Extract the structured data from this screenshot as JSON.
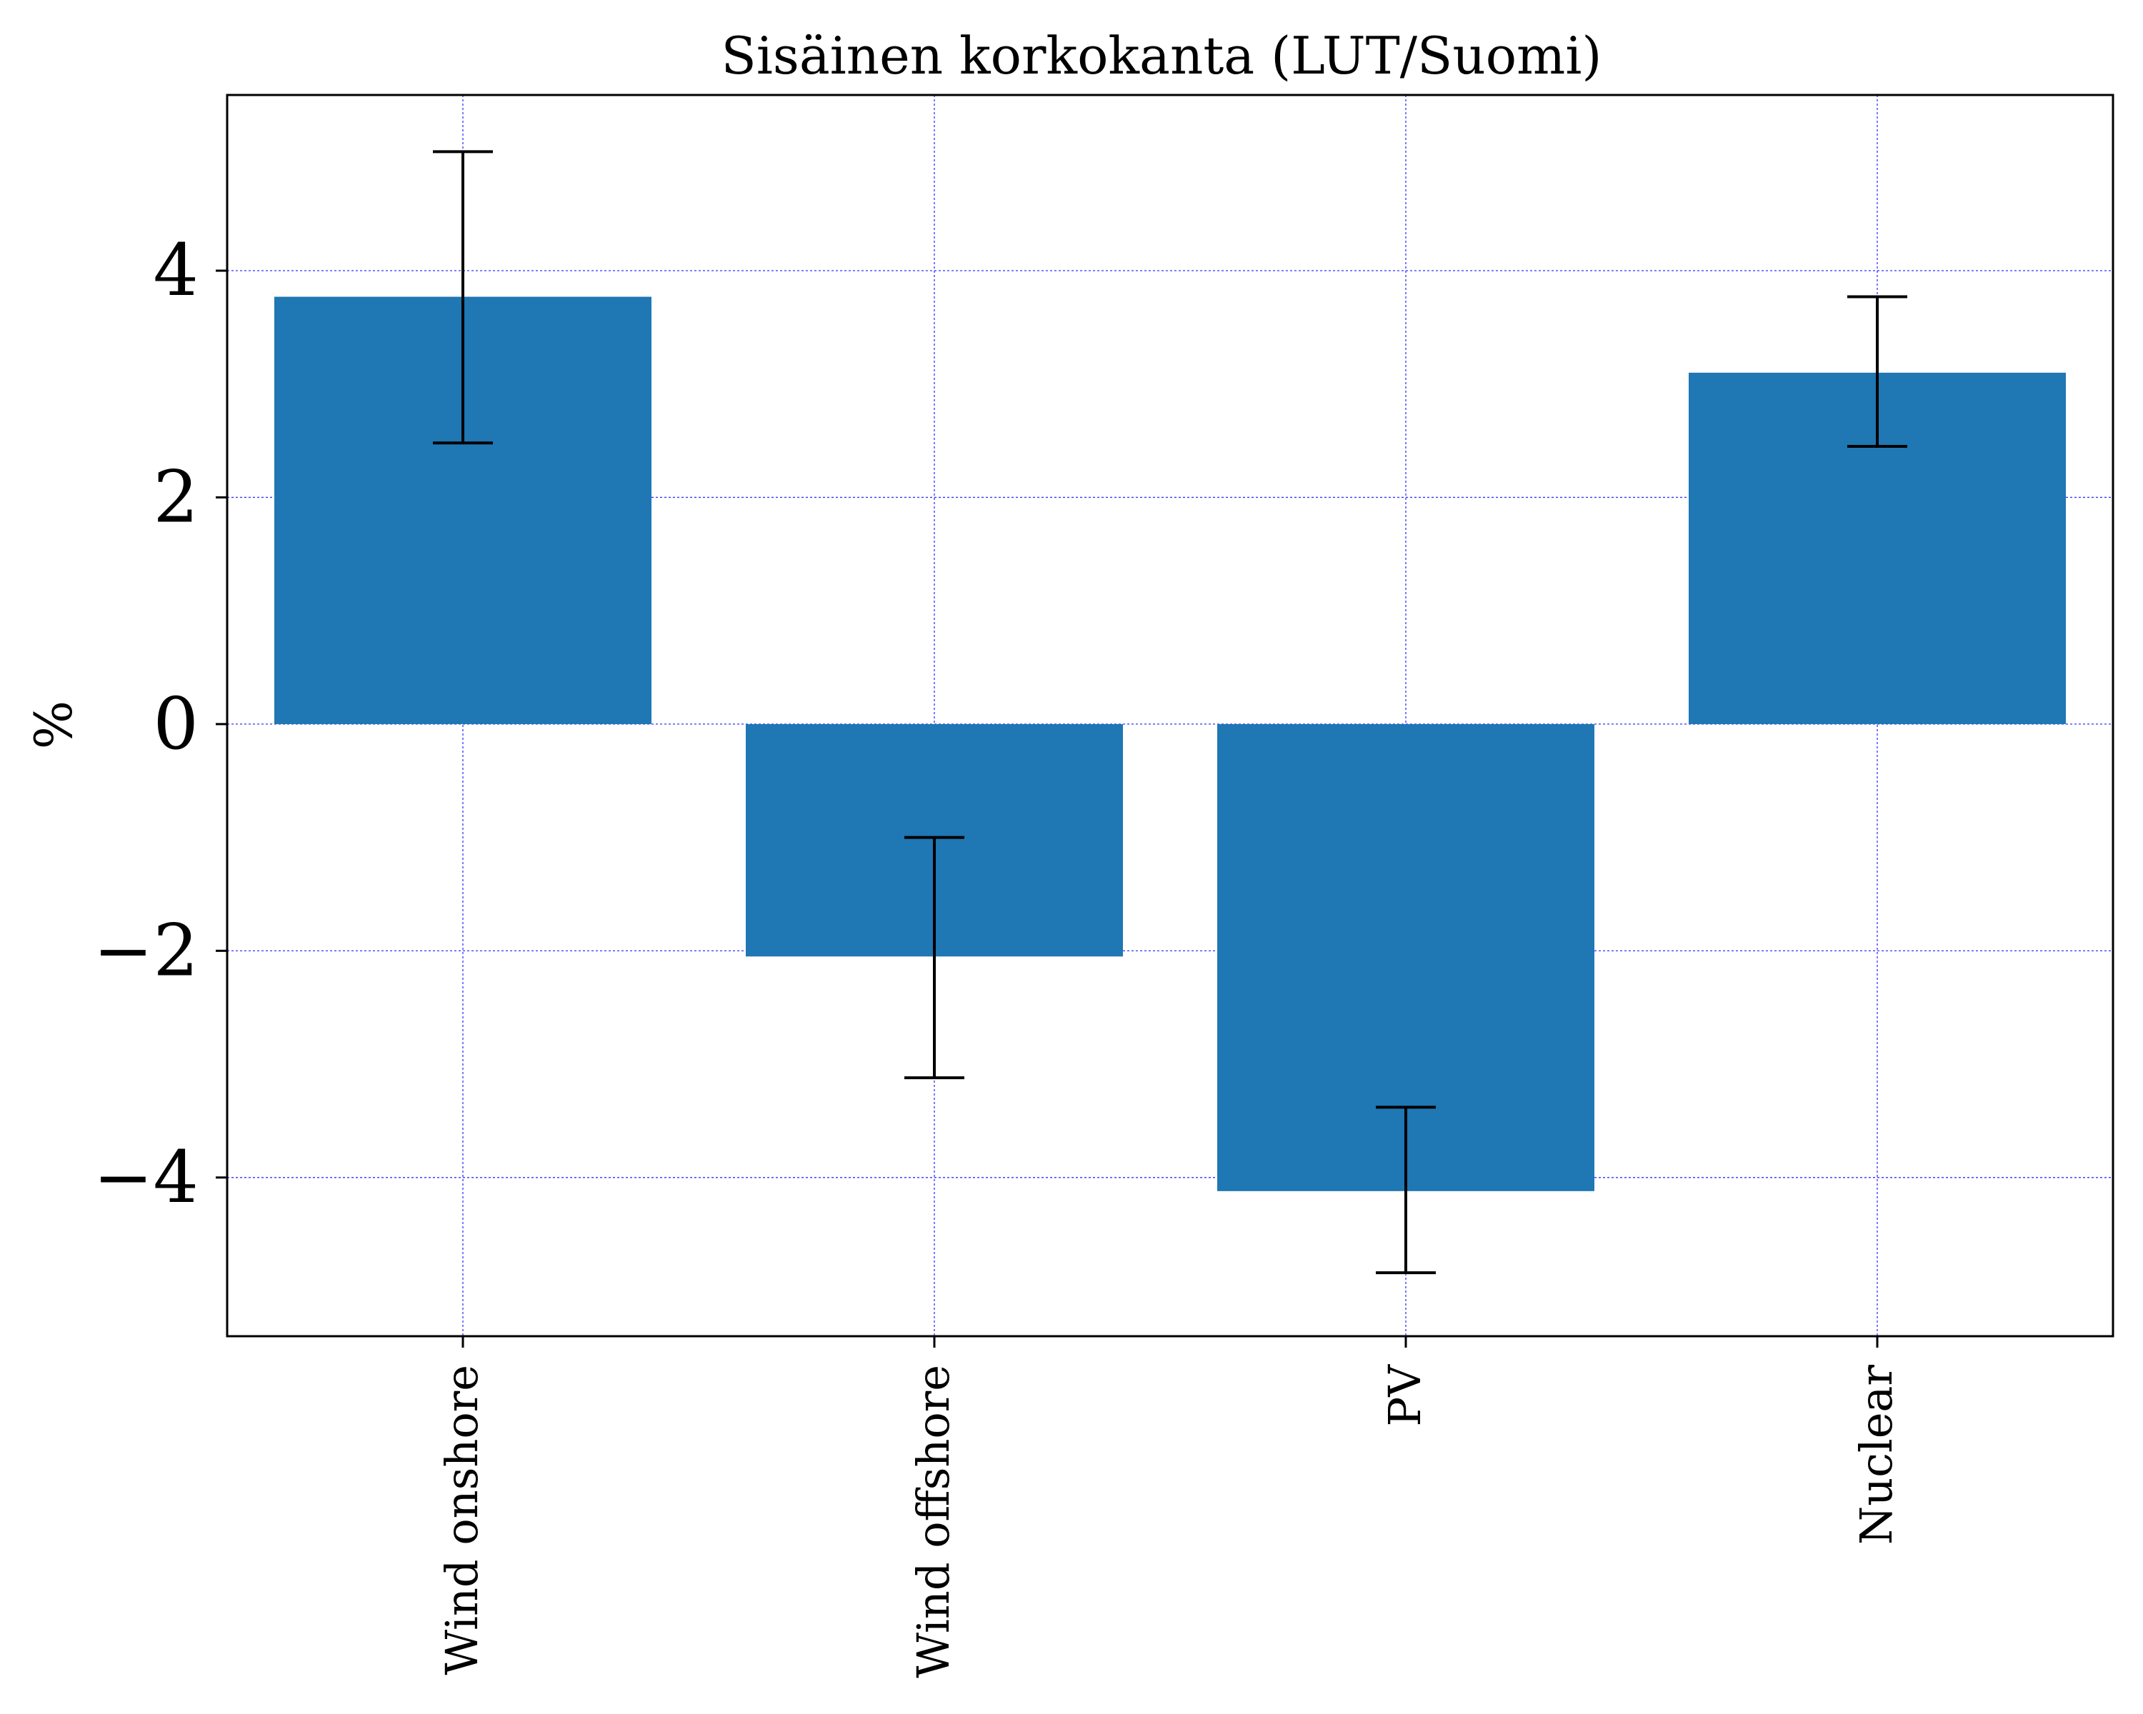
{
  "chart_data": {
    "type": "bar",
    "title": "Sisäinen korkokanta (LUT/Suomi)",
    "xlabel": "",
    "ylabel": "%",
    "categories": [
      "Wind onshore",
      "Wind offshore",
      "PV",
      "Nuclear"
    ],
    "values": [
      3.77,
      -2.05,
      -4.12,
      3.1
    ],
    "error_low": [
      2.48,
      -3.12,
      -4.84,
      2.45
    ],
    "error_high": [
      5.05,
      -1.0,
      -3.38,
      3.77
    ],
    "ylim": [
      -5.4,
      5.55
    ],
    "yticks": [
      -4,
      -2,
      0,
      2,
      4
    ],
    "ytick_labels": [
      "−4",
      "−2",
      "0",
      "2",
      "4"
    ],
    "grid": true,
    "bar_color": "#1f77b4",
    "grid_color": "#0000ff",
    "errorbar_color": "#000000"
  }
}
